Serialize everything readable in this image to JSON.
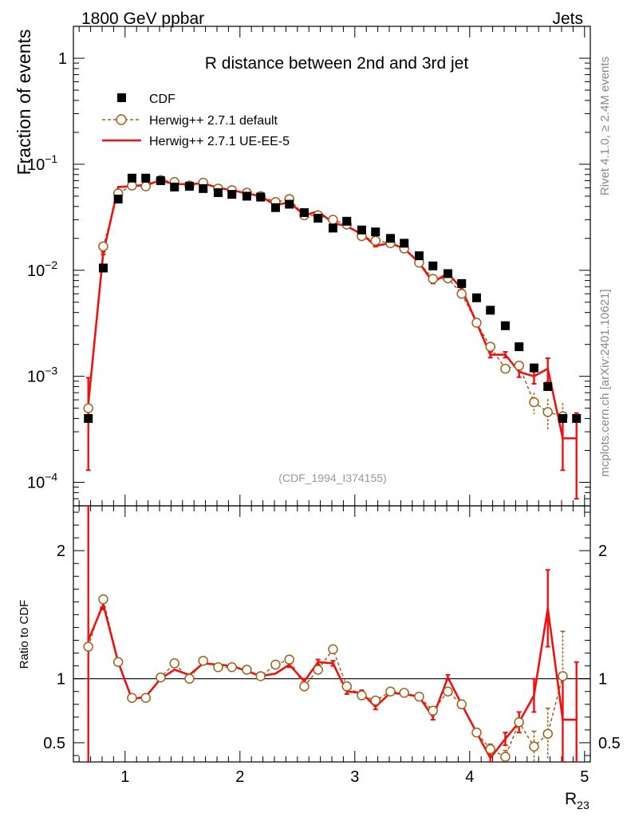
{
  "header": {
    "left": "1800 GeV ppbar",
    "right": "Jets"
  },
  "side_labels": {
    "rivet": "Rivet 4.1.0, ≥ 2.4M events",
    "mcplots": "mcplots.cern.ch [arXiv:2401.10621]"
  },
  "colors": {
    "cdf": "#000000",
    "default": "#a0601a",
    "ue": "#ee1111",
    "side_text": "#888888"
  },
  "chart_data": [
    {
      "type": "scatter",
      "panel": "main",
      "title": "R distance between 2nd and 3rd jet",
      "analysis_id": "(CDF_1994_I374155)",
      "ylabel": "Fraction of events",
      "yscale": "log",
      "ylim": [
        6e-05,
        2.0
      ],
      "xlim": [
        0.55,
        5.05
      ],
      "y_ticks": [
        {
          "value": 1,
          "base": "1",
          "exp": ""
        },
        {
          "value": 0.1,
          "base": "10",
          "exp": "−1"
        },
        {
          "value": 0.01,
          "base": "10",
          "exp": "−2"
        },
        {
          "value": 0.001,
          "base": "10",
          "exp": "−3"
        },
        {
          "value": 0.0001,
          "base": "10",
          "exp": "−4"
        }
      ],
      "legend": [
        "CDF",
        "Herwig++ 2.7.1 default",
        "Herwig++ 2.7.1 UE-EE-5"
      ],
      "series": [
        {
          "name": "CDF",
          "style": "square",
          "x": [
            0.68,
            0.81,
            0.94,
            1.06,
            1.18,
            1.31,
            1.43,
            1.56,
            1.68,
            1.81,
            1.93,
            2.06,
            2.18,
            2.31,
            2.43,
            2.56,
            2.68,
            2.81,
            2.93,
            3.06,
            3.18,
            3.31,
            3.43,
            3.56,
            3.68,
            3.81,
            3.93,
            4.06,
            4.18,
            4.31,
            4.43,
            4.56,
            4.68,
            4.81,
            4.93
          ],
          "values": [
            0.0004,
            0.0105,
            0.047,
            0.074,
            0.074,
            0.07,
            0.061,
            0.062,
            0.059,
            0.054,
            0.052,
            0.05,
            0.049,
            0.039,
            0.042,
            0.035,
            0.031,
            0.025,
            0.029,
            0.024,
            0.023,
            0.02,
            0.018,
            0.0137,
            0.011,
            0.0093,
            0.0075,
            0.0055,
            0.0042,
            0.003,
            0.0019,
            0.0012,
            0.0008,
            0.0004,
            0.0004
          ]
        },
        {
          "name": "Herwig++ 2.7.1 default",
          "style": "open-circle-dashed",
          "x": [
            0.68,
            0.81,
            0.94,
            1.06,
            1.18,
            1.31,
            1.43,
            1.56,
            1.68,
            1.81,
            1.93,
            2.06,
            2.18,
            2.31,
            2.43,
            2.56,
            2.68,
            2.81,
            2.93,
            3.06,
            3.18,
            3.31,
            3.43,
            3.56,
            3.68,
            3.81,
            3.93,
            4.06,
            4.18,
            4.31,
            4.43,
            4.56,
            4.68,
            4.81
          ],
          "values": [
            0.0005,
            0.0168,
            0.053,
            0.063,
            0.062,
            0.071,
            0.068,
            0.063,
            0.067,
            0.059,
            0.057,
            0.054,
            0.05,
            0.044,
            0.047,
            0.033,
            0.033,
            0.03,
            0.027,
            0.021,
            0.019,
            0.018,
            0.016,
            0.0118,
            0.0083,
            0.0084,
            0.006,
            0.0032,
            0.0019,
            0.00118,
            0.00126,
            0.00057,
            0.00046,
            0.00042
          ],
          "err": [
            1e-05,
            0.0003,
            0.0006,
            0.0007,
            0.0007,
            0.0007,
            0.0007,
            0.0007,
            0.0007,
            0.0006,
            0.0006,
            0.0006,
            0.0005,
            0.0005,
            0.0005,
            0.0004,
            0.0004,
            0.0004,
            0.0003,
            0.0003,
            0.0003,
            0.0003,
            0.0002,
            0.0002,
            0.0002,
            0.0002,
            0.00015,
            0.0001,
            8e-05,
            7e-05,
            8e-05,
            0.00013,
            0.00015,
            0.00014
          ]
        },
        {
          "name": "Herwig++ 2.7.1 UE-EE-5",
          "style": "solid-line",
          "x": [
            0.68,
            0.81,
            0.94,
            1.06,
            1.18,
            1.31,
            1.43,
            1.56,
            1.68,
            1.81,
            1.93,
            2.06,
            2.18,
            2.31,
            2.43,
            2.56,
            2.68,
            2.81,
            2.93,
            3.06,
            3.18,
            3.31,
            3.43,
            3.56,
            3.68,
            3.81,
            3.93,
            4.06,
            4.18,
            4.31,
            4.43,
            4.56,
            4.68,
            4.81,
            4.93
          ],
          "values": [
            0.00055,
            0.0145,
            0.061,
            0.062,
            0.064,
            0.07,
            0.065,
            0.065,
            0.066,
            0.06,
            0.057,
            0.053,
            0.05,
            0.041,
            0.044,
            0.033,
            0.036,
            0.028,
            0.026,
            0.022,
            0.017,
            0.018,
            0.016,
            0.0118,
            0.0077,
            0.0094,
            0.0067,
            0.0032,
            0.0016,
            0.0016,
            0.0011,
            0.001,
            0.00118,
            0.00026,
            0.00026
          ],
          "err": [
            0.00042,
            0.0004,
            0.0007,
            0.0007,
            0.0007,
            0.0007,
            0.0007,
            0.0007,
            0.0007,
            0.0006,
            0.0006,
            0.0006,
            0.0005,
            0.0005,
            0.0005,
            0.0004,
            0.0004,
            0.0004,
            0.0003,
            0.0003,
            0.0003,
            0.0003,
            0.0002,
            0.0002,
            0.0002,
            0.0002,
            0.00015,
            0.0001,
            0.0001,
            0.0001,
            0.00012,
            0.00015,
            0.0003,
            0.00013,
            0.00019
          ]
        }
      ]
    },
    {
      "type": "line",
      "panel": "ratio",
      "ylabel": "Ratio to CDF",
      "xlabel": "R",
      "xlabel_sub": "23",
      "ylim": [
        0.35,
        2.35
      ],
      "xlim": [
        0.55,
        5.05
      ],
      "reference_line": 1,
      "y_ticks": [
        0.5,
        1,
        2
      ],
      "y_tick_labels": [
        "0.5",
        "1",
        "2"
      ],
      "x_ticks": [
        1,
        2,
        3,
        4,
        5
      ],
      "x_tick_labels": [
        "1",
        "2",
        "3",
        "4",
        "5"
      ],
      "series": [
        {
          "name": "Herwig++ 2.7.1 default",
          "style": "open-circle-dashed",
          "x": [
            0.68,
            0.81,
            0.94,
            1.06,
            1.18,
            1.31,
            1.43,
            1.56,
            1.68,
            1.81,
            1.93,
            2.06,
            2.18,
            2.31,
            2.43,
            2.56,
            2.68,
            2.81,
            2.93,
            3.06,
            3.18,
            3.31,
            3.43,
            3.56,
            3.68,
            3.81,
            3.93,
            4.06,
            4.18,
            4.31,
            4.43,
            4.56,
            4.68,
            4.81
          ],
          "values": [
            1.25,
            1.62,
            1.13,
            0.85,
            0.85,
            1.01,
            1.12,
            1.0,
            1.14,
            1.09,
            1.09,
            1.07,
            1.02,
            1.11,
            1.15,
            0.94,
            1.07,
            1.23,
            0.94,
            0.87,
            0.83,
            0.9,
            0.89,
            0.86,
            0.75,
            0.9,
            0.8,
            0.58,
            0.45,
            0.39,
            0.66,
            0.47,
            0.57,
            1.02
          ],
          "err": [
            0.02,
            0.03,
            0.01,
            0.01,
            0.01,
            0.01,
            0.01,
            0.01,
            0.01,
            0.01,
            0.01,
            0.01,
            0.01,
            0.01,
            0.01,
            0.01,
            0.01,
            0.02,
            0.01,
            0.01,
            0.01,
            0.02,
            0.02,
            0.02,
            0.02,
            0.02,
            0.03,
            0.03,
            0.04,
            0.05,
            0.08,
            0.12,
            0.2,
            0.35
          ]
        },
        {
          "name": "Herwig++ 2.7.1 UE-EE-5",
          "style": "solid-line",
          "x": [
            0.68,
            0.81,
            0.94,
            1.06,
            1.18,
            1.31,
            1.43,
            1.56,
            1.68,
            1.81,
            1.93,
            2.06,
            2.18,
            2.31,
            2.43,
            2.56,
            2.68,
            2.81,
            2.93,
            3.06,
            3.18,
            3.31,
            3.43,
            3.56,
            3.68,
            3.81,
            3.93,
            4.06,
            4.18,
            4.31,
            4.43,
            4.56,
            4.68,
            4.81,
            4.93
          ],
          "values": [
            1.3,
            1.58,
            1.13,
            0.84,
            0.86,
            1.0,
            1.07,
            1.03,
            1.12,
            1.11,
            1.1,
            1.06,
            1.02,
            1.04,
            1.11,
            0.98,
            1.13,
            1.12,
            0.9,
            0.89,
            0.78,
            0.89,
            0.88,
            0.86,
            0.7,
            1.01,
            0.8,
            0.58,
            0.38,
            0.53,
            0.66,
            0.87,
            1.55,
            0.68,
            0.68
          ],
          "err": [
            1.05,
            0.04,
            0.02,
            0.01,
            0.01,
            0.01,
            0.01,
            0.01,
            0.01,
            0.01,
            0.01,
            0.01,
            0.01,
            0.01,
            0.02,
            0.02,
            0.02,
            0.02,
            0.02,
            0.02,
            0.02,
            0.02,
            0.02,
            0.02,
            0.02,
            0.02,
            0.03,
            0.03,
            0.05,
            0.05,
            0.08,
            0.13,
            0.3,
            0.35,
            0.45
          ]
        }
      ]
    }
  ]
}
